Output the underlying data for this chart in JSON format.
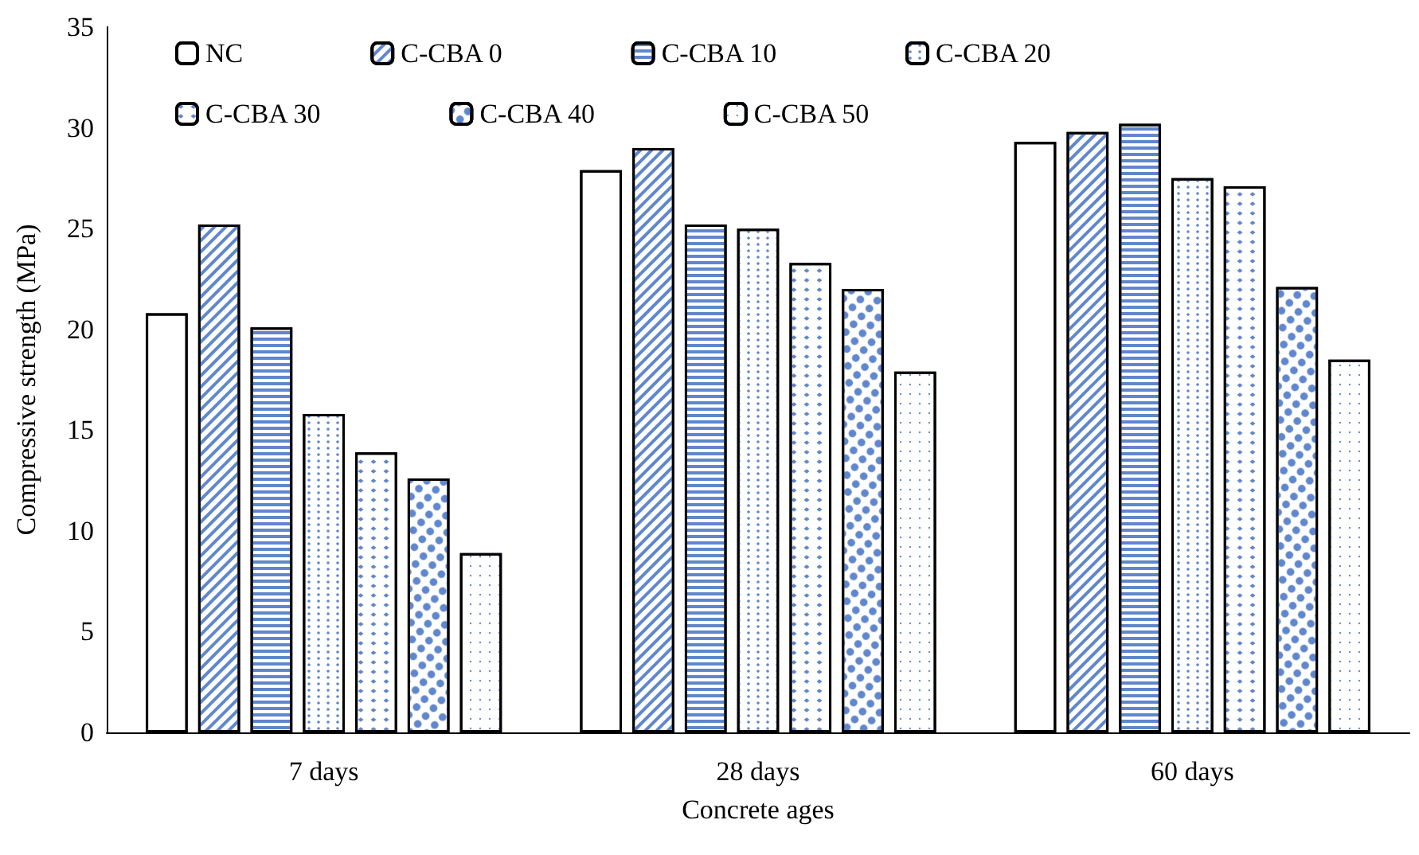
{
  "chart_data": {
    "type": "bar",
    "xlabel": "Concrete ages",
    "ylabel": "Compressive strength (MPa)",
    "categories": [
      "7 days",
      "28 days",
      "60 days"
    ],
    "series": [
      {
        "name": "NC",
        "color": "#ffffff",
        "values": [
          20.8,
          27.9,
          29.3
        ]
      },
      {
        "name": "C-CBA 0",
        "color": "#ffffff",
        "values": [
          25.2,
          29.0,
          29.8
        ]
      },
      {
        "name": "C-CBA 10",
        "color": "#ffffff",
        "values": [
          20.1,
          25.2,
          30.2
        ]
      },
      {
        "name": "C-CBA 20",
        "color": "#ffffff",
        "values": [
          15.8,
          25.0,
          27.5
        ]
      },
      {
        "name": "C-CBA 30",
        "color": "#ffffff",
        "values": [
          13.9,
          23.3,
          27.1
        ]
      },
      {
        "name": "C-CBA 40",
        "color": "#ffffff",
        "values": [
          12.6,
          22.0,
          22.1
        ]
      },
      {
        "name": "C-CBA 50",
        "color": "#ffffff",
        "values": [
          8.9,
          17.9,
          18.5
        ]
      }
    ],
    "ylim": [
      0,
      35
    ],
    "yticks": [
      0,
      5,
      10,
      15,
      20,
      25,
      30,
      35
    ],
    "grid": false,
    "legend": "top left"
  }
}
